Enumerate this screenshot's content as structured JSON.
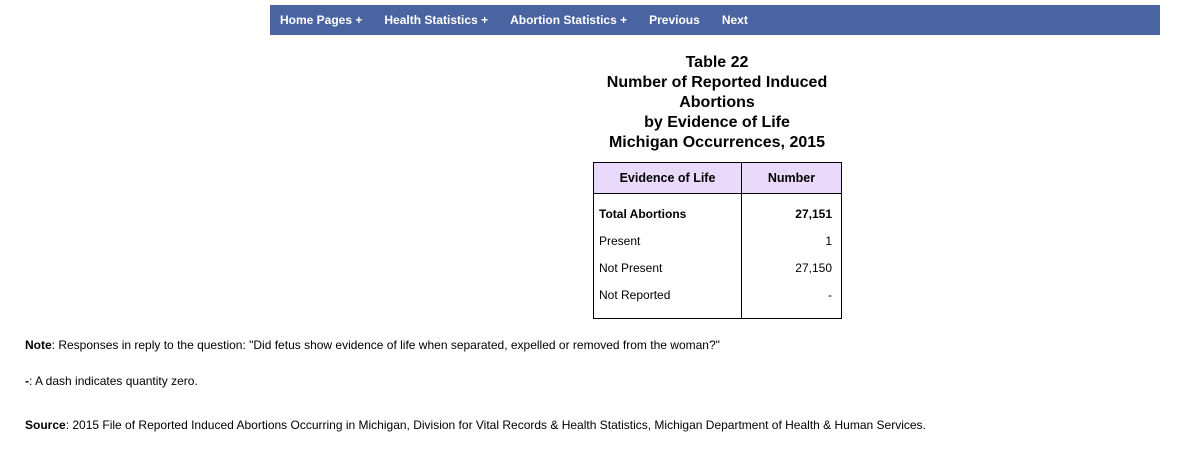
{
  "nav": {
    "items": [
      {
        "label": "Home Pages +"
      },
      {
        "label": "Health Statistics +"
      },
      {
        "label": "Abortion Statistics +"
      },
      {
        "label": "Previous"
      },
      {
        "label": "Next"
      }
    ]
  },
  "title": {
    "line1": "Table 22",
    "line2": "Number of Reported Induced",
    "line3": "Abortions",
    "line4": "by Evidence of Life",
    "line5": "Michigan Occurrences, 2015"
  },
  "table": {
    "headers": {
      "label": "Evidence of Life",
      "value": "Number"
    },
    "rows": [
      {
        "label": "Total Abortions",
        "value": "27,151"
      },
      {
        "label": "Present",
        "value": "1"
      },
      {
        "label": "Not Present",
        "value": "27,150"
      },
      {
        "label": "Not Reported",
        "value": "-"
      }
    ]
  },
  "notes": {
    "note_label": "Note",
    "note_text": ":  Responses in reply to the question: \"Did fetus show evidence of life when separated, expelled or removed from the woman?\"",
    "dash_label": "-",
    "dash_text": ": A dash indicates quantity zero.",
    "source_label": "Source",
    "source_text": ":  2015 File of Reported Induced Abortions Occurring in Michigan, Division for Vital Records & Health Statistics, Michigan Department of Health & Human Services."
  },
  "colors": {
    "navbar": "#4a63a1",
    "header_fill": "#e9d9fb"
  }
}
